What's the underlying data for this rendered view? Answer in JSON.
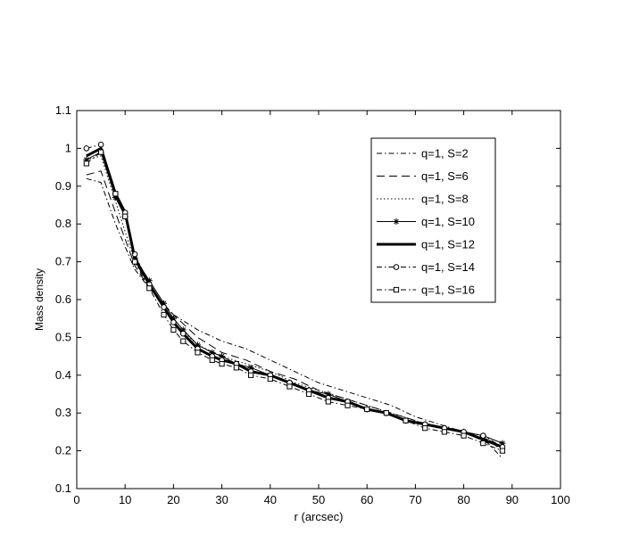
{
  "chart_data": {
    "type": "line",
    "title": "",
    "xlabel": "r (arcsec)",
    "ylabel": "Mass density",
    "xlim": [
      0,
      100
    ],
    "ylim": [
      0.1,
      1.1
    ],
    "xticks": [
      "0",
      "10",
      "20",
      "30",
      "40",
      "50",
      "60",
      "70",
      "80",
      "90",
      "100"
    ],
    "yticks": [
      "0.1",
      "0.2",
      "0.3",
      "0.4",
      "0.5",
      "0.6",
      "0.7",
      "0.8",
      "0.9",
      "1",
      "1.1"
    ],
    "grid": false,
    "legend_position": "top-right",
    "line_color": "#000000",
    "series": [
      {
        "name": "q=1, S=2",
        "style": "dashdot",
        "marker": "none",
        "x": [
          2,
          5,
          8,
          12,
          15,
          20,
          25,
          30,
          35,
          40,
          45,
          50,
          55,
          60,
          65,
          70,
          75,
          80,
          85,
          88
        ],
        "y": [
          0.92,
          0.91,
          0.8,
          0.68,
          0.63,
          0.56,
          0.52,
          0.49,
          0.47,
          0.44,
          0.41,
          0.38,
          0.36,
          0.34,
          0.32,
          0.29,
          0.27,
          0.25,
          0.22,
          0.18
        ]
      },
      {
        "name": "q=1, S=6",
        "style": "dashed",
        "marker": "none",
        "x": [
          2,
          5,
          8,
          12,
          15,
          20,
          25,
          30,
          35,
          40,
          45,
          50,
          55,
          60,
          65,
          70,
          75,
          80,
          85,
          88
        ],
        "y": [
          0.93,
          0.94,
          0.83,
          0.69,
          0.63,
          0.56,
          0.5,
          0.46,
          0.44,
          0.41,
          0.39,
          0.36,
          0.34,
          0.32,
          0.3,
          0.28,
          0.26,
          0.25,
          0.23,
          0.2
        ]
      },
      {
        "name": "q=1, S=8",
        "style": "dotted",
        "marker": "none",
        "x": [
          2,
          5,
          8,
          12,
          15,
          20,
          25,
          30,
          35,
          40,
          45,
          50,
          55,
          60,
          65,
          70,
          75,
          80,
          85,
          88
        ],
        "y": [
          0.97,
          0.98,
          0.86,
          0.7,
          0.64,
          0.54,
          0.48,
          0.45,
          0.43,
          0.41,
          0.38,
          0.36,
          0.34,
          0.32,
          0.3,
          0.28,
          0.26,
          0.25,
          0.23,
          0.21
        ]
      },
      {
        "name": "q=1, S=10",
        "style": "solid",
        "marker": "star",
        "x": [
          2,
          5,
          8,
          10,
          12,
          15,
          18,
          20,
          22,
          25,
          28,
          30,
          33,
          36,
          40,
          44,
          48,
          52,
          56,
          60,
          64,
          68,
          72,
          76,
          80,
          84,
          88
        ],
        "y": [
          0.97,
          0.99,
          0.87,
          0.82,
          0.71,
          0.65,
          0.59,
          0.55,
          0.52,
          0.48,
          0.46,
          0.45,
          0.43,
          0.42,
          0.4,
          0.38,
          0.36,
          0.35,
          0.33,
          0.31,
          0.3,
          0.28,
          0.27,
          0.26,
          0.25,
          0.24,
          0.22
        ]
      },
      {
        "name": "q=1, S=12",
        "style": "solid-thick",
        "marker": "none",
        "x": [
          2,
          5,
          8,
          10,
          12,
          15,
          18,
          20,
          22,
          25,
          28,
          30,
          33,
          36,
          40,
          44,
          48,
          52,
          56,
          60,
          64,
          68,
          72,
          76,
          80,
          84,
          88
        ],
        "y": [
          0.98,
          1.0,
          0.88,
          0.83,
          0.71,
          0.64,
          0.58,
          0.54,
          0.51,
          0.47,
          0.45,
          0.44,
          0.43,
          0.41,
          0.4,
          0.38,
          0.36,
          0.34,
          0.33,
          0.31,
          0.3,
          0.28,
          0.27,
          0.26,
          0.25,
          0.23,
          0.21
        ]
      },
      {
        "name": "q=1, S=14",
        "style": "dashdot",
        "marker": "circle",
        "x": [
          2,
          5,
          8,
          10,
          12,
          15,
          18,
          20,
          22,
          25,
          28,
          30,
          33,
          36,
          40,
          44,
          48,
          52,
          56,
          60,
          64,
          68,
          72,
          76,
          80,
          84,
          88
        ],
        "y": [
          1.0,
          1.01,
          0.88,
          0.83,
          0.72,
          0.64,
          0.58,
          0.54,
          0.51,
          0.47,
          0.45,
          0.44,
          0.43,
          0.41,
          0.4,
          0.38,
          0.36,
          0.34,
          0.33,
          0.31,
          0.3,
          0.28,
          0.27,
          0.26,
          0.25,
          0.24,
          0.21
        ]
      },
      {
        "name": "q=1, S=16",
        "style": "dashdot",
        "marker": "square",
        "x": [
          2,
          5,
          8,
          10,
          12,
          15,
          18,
          20,
          22,
          25,
          28,
          30,
          33,
          36,
          40,
          44,
          48,
          52,
          56,
          60,
          64,
          68,
          72,
          76,
          80,
          84,
          88
        ],
        "y": [
          0.96,
          0.99,
          0.88,
          0.82,
          0.7,
          0.63,
          0.56,
          0.52,
          0.49,
          0.46,
          0.44,
          0.43,
          0.42,
          0.4,
          0.39,
          0.37,
          0.35,
          0.33,
          0.32,
          0.31,
          0.3,
          0.28,
          0.26,
          0.25,
          0.24,
          0.22,
          0.2
        ]
      }
    ]
  }
}
